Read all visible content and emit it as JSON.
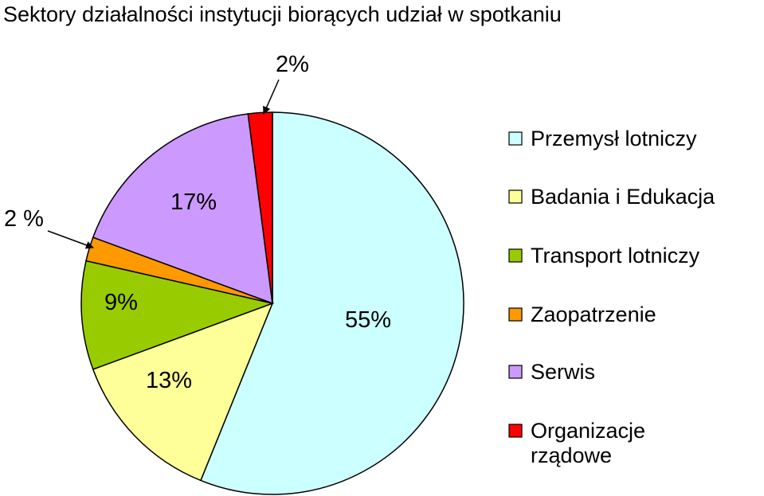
{
  "chart_data": {
    "type": "pie",
    "title": "Sektory działalności instytucji biorących udział w spotkaniu",
    "slices": [
      {
        "name": "Przemysł lotniczy",
        "value": 55,
        "label": "55%",
        "color": "#ccffff"
      },
      {
        "name": "Badania i Edukacja",
        "value": 13,
        "label": "13%",
        "color": "#ffff99"
      },
      {
        "name": "Transport lotniczy",
        "value": 9,
        "label": "9%",
        "color": "#99cc00"
      },
      {
        "name": "Zaopatrzenie",
        "value": 2,
        "label": "2 %",
        "color": "#ff9900"
      },
      {
        "name": "Serwis",
        "value": 17,
        "label": "17%",
        "color": "#cc99ff"
      },
      {
        "name": "Organizacje rządowe",
        "value": 2,
        "label": "2%",
        "color": "#ff0000"
      }
    ],
    "legend_placement": "right",
    "legend": [
      {
        "lines": [
          "Przemysł lotniczy"
        ]
      },
      {
        "lines": [
          "Badania i Edukacja"
        ]
      },
      {
        "lines": [
          "Transport lotniczy"
        ]
      },
      {
        "lines": [
          "Zaopatrzenie"
        ]
      },
      {
        "lines": [
          "Serwis"
        ]
      },
      {
        "lines": [
          "Organizacje",
          "rządowe"
        ]
      }
    ]
  }
}
